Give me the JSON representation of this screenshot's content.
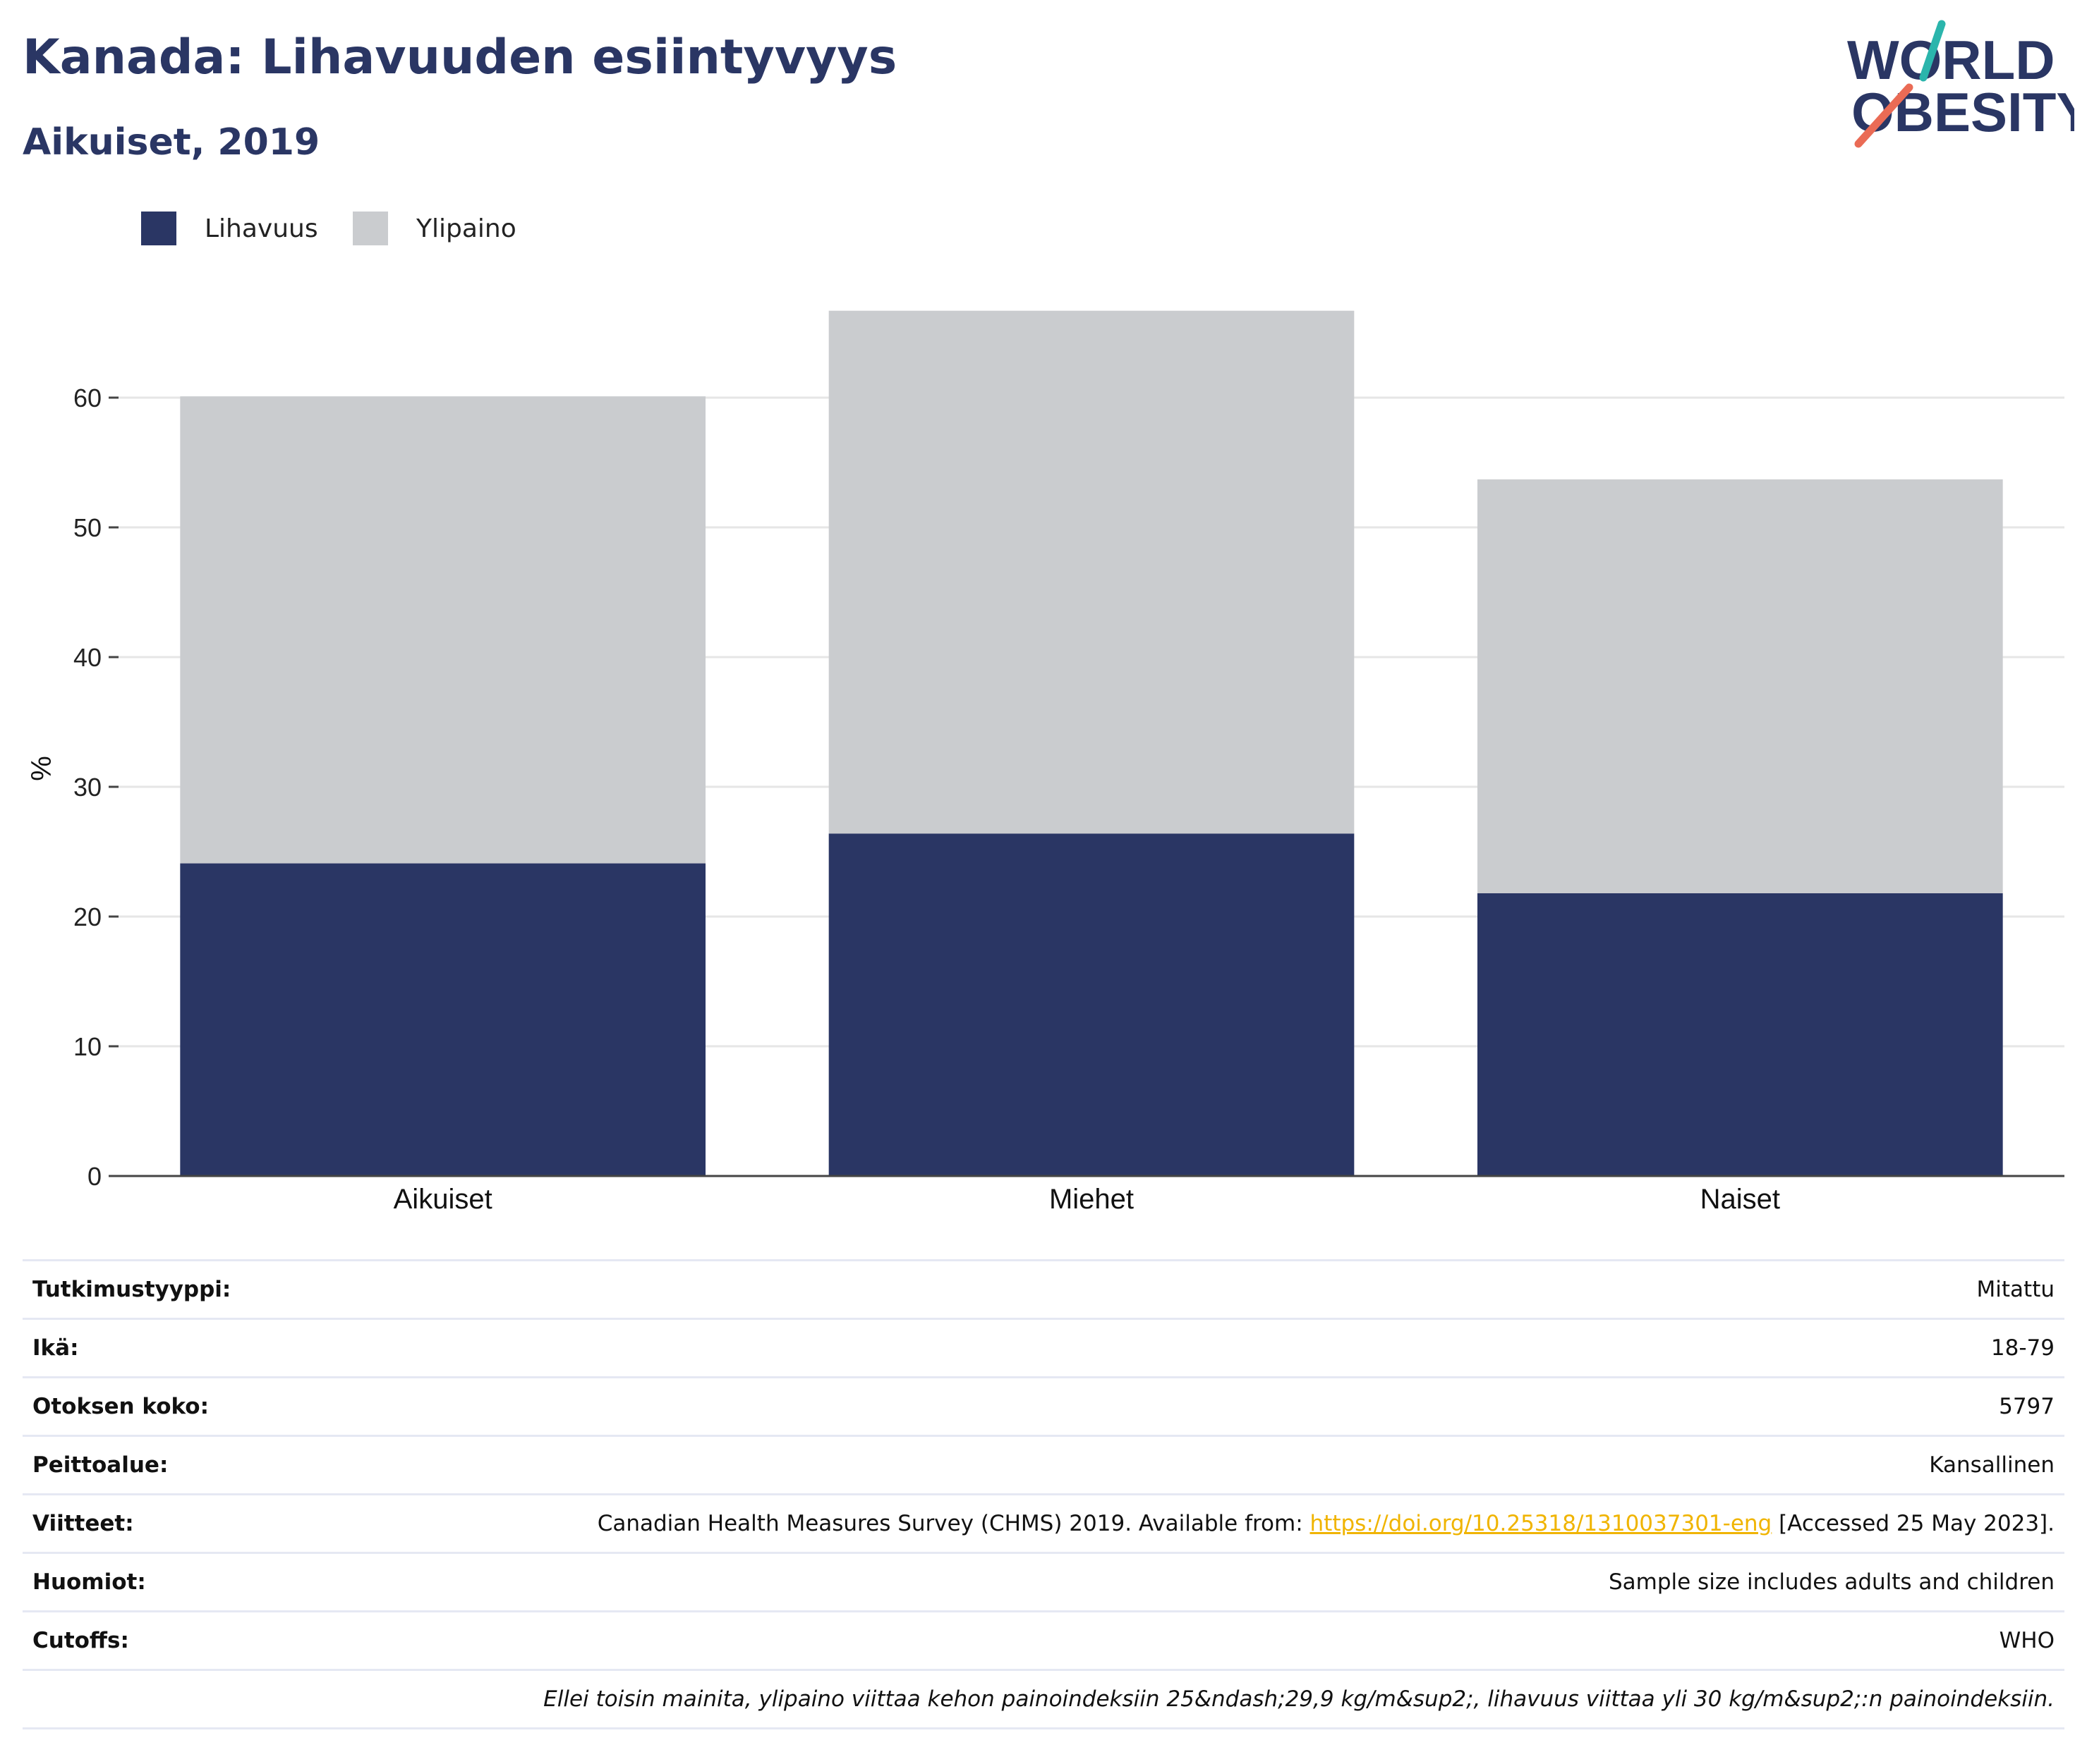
{
  "header": {
    "title": "Kanada: Lihavuuden esiintyvyys",
    "subtitle": "Aikuiset, 2019"
  },
  "logo": {
    "line1": "WORLD",
    "line2": "OBESITY"
  },
  "colors": {
    "obesity": "#2a3664",
    "overweight": "#cacccf",
    "text": "#2a3664",
    "link": "#f0b400",
    "logo_teal": "#2bb5ac",
    "logo_coral": "#ea6b55",
    "grid": "#e6e6e6",
    "axis": "#444444",
    "divider": "#e5e8f3"
  },
  "chart_data": {
    "type": "bar",
    "stacked": true,
    "categories": [
      "Aikuiset",
      "Miehet",
      "Naiset"
    ],
    "series": [
      {
        "name": "Lihavuus",
        "values": [
          24.1,
          26.4,
          21.8
        ]
      },
      {
        "name": "Ylipaino",
        "values": [
          36.0,
          40.3,
          31.9
        ]
      }
    ],
    "xlabel": "",
    "ylabel": "%",
    "ylim": [
      0,
      70
    ],
    "yticks": [
      0,
      10,
      20,
      30,
      40,
      50,
      60
    ],
    "grid": true,
    "legend": "top-left"
  },
  "meta": {
    "rows": [
      {
        "key": "Tutkimustyyppi:",
        "value": "Mitattu"
      },
      {
        "key": "Ikä:",
        "value": "18-79"
      },
      {
        "key": "Otoksen koko:",
        "value": "5797"
      },
      {
        "key": "Peittoalue:",
        "value": "Kansallinen"
      }
    ],
    "references": {
      "key": "Viitteet:",
      "before": "Canadian Health Measures Survey (CHMS) 2019. Available from: ",
      "link": "https://doi.org/10.25318/1310037301-eng",
      "after": " [Accessed 25 May 2023]."
    },
    "rows2": [
      {
        "key": "Huomiot:",
        "value": "Sample size includes adults and children"
      },
      {
        "key": "Cutoffs:",
        "value": "WHO"
      }
    ],
    "note": "Ellei toisin mainita, ylipaino viittaa kehon painoindeksiin 25&ndash;29,9 kg/m&sup2;, lihavuus viittaa yli 30 kg/m&sup2;:n painoindeksiin."
  }
}
